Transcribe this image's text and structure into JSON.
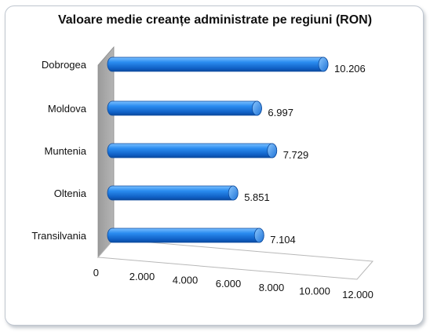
{
  "chart_data": {
    "type": "bar",
    "orientation": "horizontal",
    "three_d": true,
    "title": "Valoare medie creanțe administrate pe regiuni (RON)",
    "xlabel": "",
    "ylabel": "",
    "xlim": [
      0,
      12000
    ],
    "x_ticks": [
      "0",
      "2.000",
      "4.000",
      "6.000",
      "8.000",
      "10.000",
      "12.000"
    ],
    "categories": [
      "Dobrogea",
      "Moldova",
      "Muntenia",
      "Oltenia",
      "Transilvania"
    ],
    "values": [
      10206,
      6997,
      7729,
      5851,
      7104
    ],
    "data_labels": [
      "10.206",
      "6.997",
      "7.729",
      "5.851",
      "7.104"
    ],
    "colors": {
      "bar": "#1f7be0",
      "bar_cap": "#5aa8f5",
      "wall": "#a3a3a3",
      "floor": "#ffffff"
    },
    "grid": false,
    "legend": "none"
  }
}
